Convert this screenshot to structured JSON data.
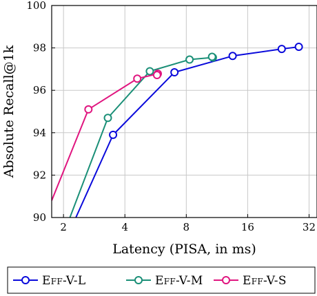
{
  "chart_data": {
    "type": "line",
    "xlabel": "Latency (PISA, in ms)",
    "ylabel": "Absolute Recall@1k",
    "x_scale": "log2",
    "xlim": [
      1.75,
      35
    ],
    "ylim": [
      90,
      100
    ],
    "x_ticks": [
      2,
      4,
      8,
      16,
      32
    ],
    "y_ticks": [
      90,
      92,
      94,
      96,
      98,
      100
    ],
    "grid": true,
    "legend_position": "bottom",
    "series": [
      {
        "name": "Eff-V-L",
        "color": "#0a0adb",
        "points": [
          [
            2.3,
            90.0
          ],
          [
            3.5,
            93.9
          ],
          [
            7.0,
            96.85
          ],
          [
            13.5,
            97.62
          ],
          [
            23.5,
            97.95
          ],
          [
            28.5,
            98.05
          ]
        ],
        "marker_points": [
          [
            3.5,
            93.9
          ],
          [
            7.0,
            96.85
          ],
          [
            13.5,
            97.62
          ],
          [
            23.5,
            97.95
          ],
          [
            28.5,
            98.05
          ]
        ]
      },
      {
        "name": "Eff-V-M",
        "color": "#1a8f77",
        "points": [
          [
            2.15,
            90.0
          ],
          [
            3.3,
            94.7
          ],
          [
            5.3,
            96.9
          ],
          [
            8.3,
            97.45
          ],
          [
            10.8,
            97.55
          ],
          [
            10.7,
            97.58
          ]
        ],
        "marker_points": [
          [
            3.3,
            94.7
          ],
          [
            5.3,
            96.9
          ],
          [
            8.3,
            97.45
          ],
          [
            10.8,
            97.55
          ],
          [
            10.7,
            97.58
          ]
        ]
      },
      {
        "name": "Eff-V-S",
        "color": "#e0157f",
        "points": [
          [
            1.75,
            90.8
          ],
          [
            2.65,
            95.1
          ],
          [
            4.6,
            96.55
          ],
          [
            5.8,
            96.78
          ],
          [
            5.75,
            96.72
          ]
        ],
        "marker_points": [
          [
            2.65,
            95.1
          ],
          [
            4.6,
            96.55
          ],
          [
            5.8,
            96.78
          ],
          [
            5.75,
            96.72
          ]
        ]
      }
    ]
  }
}
